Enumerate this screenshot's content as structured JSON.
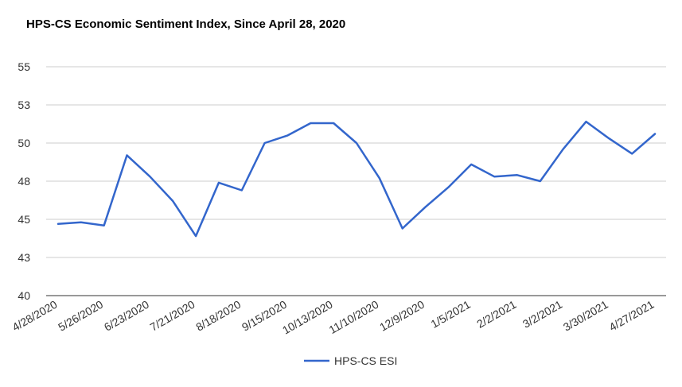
{
  "chart_data": {
    "type": "line",
    "title": "HPS-CS Economic Sentiment Index, Since April 28, 2020",
    "xlabel": "",
    "ylabel": "",
    "ylim": [
      40,
      55
    ],
    "yticks": [
      {
        "value": 40,
        "label": "40"
      },
      {
        "value": 42.5,
        "label": "43"
      },
      {
        "value": 45,
        "label": "45"
      },
      {
        "value": 47.5,
        "label": "48"
      },
      {
        "value": 50,
        "label": "50"
      },
      {
        "value": 52.5,
        "label": "53"
      },
      {
        "value": 55,
        "label": "55"
      }
    ],
    "grid": true,
    "legend_position": "bottom",
    "x": [
      "4/28/2020",
      "5/12/2020",
      "5/26/2020",
      "6/9/2020",
      "6/23/2020",
      "7/7/2020",
      "7/21/2020",
      "8/4/2020",
      "8/18/2020",
      "9/1/2020",
      "9/15/2020",
      "9/29/2020",
      "10/13/2020",
      "10/27/2020",
      "11/10/2020",
      "11/24/2020",
      "12/9/2020",
      "12/22/2020",
      "1/5/2021",
      "1/19/2021",
      "2/2/2021",
      "2/16/2021",
      "3/2/2021",
      "3/16/2021",
      "3/30/2021",
      "4/13/2021",
      "4/27/2021"
    ],
    "xtick_labels": [
      "4/28/2020",
      "5/26/2020",
      "6/23/2020",
      "7/21/2020",
      "8/18/2020",
      "9/15/2020",
      "10/13/2020",
      "11/10/2020",
      "12/9/2020",
      "1/5/2021",
      "2/2/2021",
      "3/2/2021",
      "3/30/2021",
      "4/27/2021"
    ],
    "series": [
      {
        "name": "HPS-CS ESI",
        "color": "#3366cc",
        "values": [
          44.7,
          44.8,
          44.6,
          49.2,
          47.8,
          46.2,
          43.9,
          47.4,
          46.9,
          50.0,
          50.5,
          51.3,
          51.3,
          50.0,
          47.7,
          44.4,
          45.8,
          47.1,
          48.6,
          47.8,
          47.9,
          47.5,
          49.6,
          51.4,
          50.3,
          49.3,
          50.6
        ]
      }
    ]
  }
}
